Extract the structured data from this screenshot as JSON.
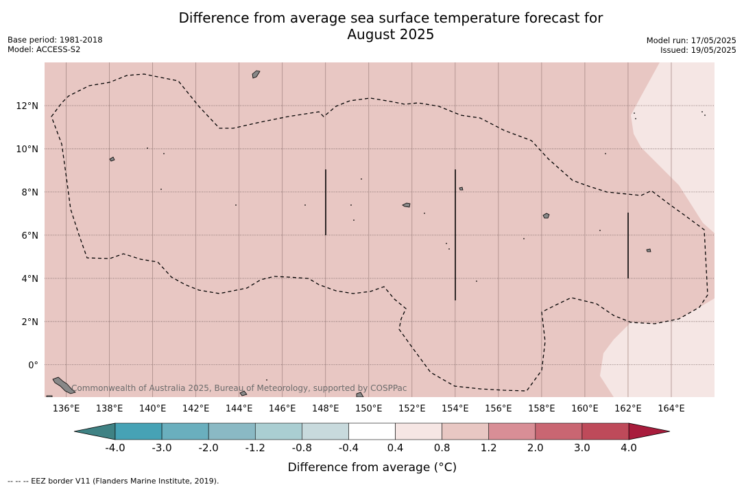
{
  "title": {
    "line1": "Difference from average sea surface temperature forecast for",
    "line2": "August 2025"
  },
  "meta": {
    "base_period": "Base period: 1981-2018",
    "model": "Model: ACCESS-S2",
    "model_run": "Model run: 17/05/2025",
    "issued": "Issued: 19/05/2025"
  },
  "map": {
    "lon_labels": [
      "136°E",
      "138°E",
      "140°E",
      "142°E",
      "144°E",
      "146°E",
      "148°E",
      "150°E",
      "152°E",
      "154°E",
      "156°E",
      "158°E",
      "160°E",
      "162°E",
      "164°E"
    ],
    "lon_values": [
      136,
      138,
      140,
      142,
      144,
      146,
      148,
      150,
      152,
      154,
      156,
      158,
      160,
      162,
      164
    ],
    "lat_labels": [
      "12°N",
      "10°N",
      "8°N",
      "6°N",
      "4°N",
      "2°N",
      "0°"
    ],
    "lat_values": [
      12,
      10,
      8,
      6,
      4,
      2,
      0
    ],
    "lon_range": [
      135,
      166
    ],
    "lat_range": [
      -1.5,
      14
    ],
    "copyright": "Commonwealth of Australia 2025, Bureau of Meteorology, supported by COSPPac",
    "colors": {
      "ocean_main": "#e8c7c3",
      "ocean_light": "#f5e6e4",
      "land": "#888888"
    }
  },
  "colorbar": {
    "tick_labels": [
      "-4.0",
      "-3.0",
      "-2.0",
      "-1.2",
      "-0.8",
      "-0.4",
      "0.4",
      "0.8",
      "1.2",
      "2.0",
      "3.0",
      "4.0"
    ],
    "colors": [
      "#46a2b5",
      "#6aafbe",
      "#8ab9c4",
      "#aaced2",
      "#c8dadd",
      "#ffffff",
      "#f6e6e4",
      "#e8c7c3",
      "#d88e96",
      "#c96672",
      "#be4a5a"
    ],
    "under_color": "#3f8284",
    "over_color": "#a81c3c",
    "label": "Difference from average (°C)"
  },
  "footnote": "-- -- -- EEZ border V11 (Flanders Marine Institute, 2019)."
}
